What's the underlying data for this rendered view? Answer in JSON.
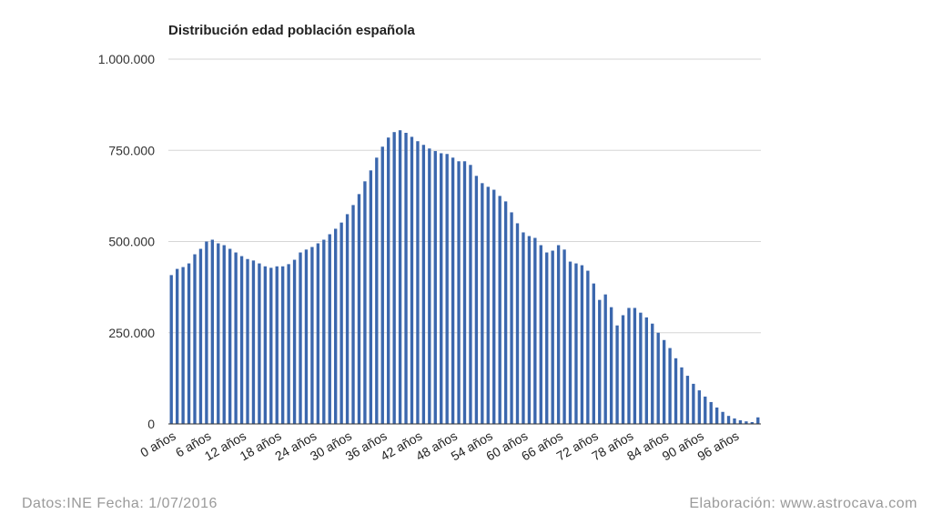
{
  "chart_data": {
    "type": "bar",
    "title": "Distribución edad población española",
    "xlabel": "",
    "ylabel": "",
    "ylim": [
      0,
      1000000
    ],
    "yticks": [
      {
        "value": 0,
        "label": "0"
      },
      {
        "value": 250000,
        "label": "250.000"
      },
      {
        "value": 500000,
        "label": "500.000"
      },
      {
        "value": 750000,
        "label": "750.000"
      },
      {
        "value": 1000000,
        "label": "1.000.000"
      }
    ],
    "categories": [
      "0 años",
      "1 años",
      "2 años",
      "3 años",
      "4 años",
      "5 años",
      "6 años",
      "7 años",
      "8 años",
      "9 años",
      "10 años",
      "11 años",
      "12 años",
      "13 años",
      "14 años",
      "15 años",
      "16 años",
      "17 años",
      "18 años",
      "19 años",
      "20 años",
      "21 años",
      "22 años",
      "23 años",
      "24 años",
      "25 años",
      "26 años",
      "27 años",
      "28 años",
      "29 años",
      "30 años",
      "31 años",
      "32 años",
      "33 años",
      "34 años",
      "35 años",
      "36 años",
      "37 años",
      "38 años",
      "39 años",
      "40 años",
      "41 años",
      "42 años",
      "43 años",
      "44 años",
      "45 años",
      "46 años",
      "47 años",
      "48 años",
      "49 años",
      "50 años",
      "51 años",
      "52 años",
      "53 años",
      "54 años",
      "55 años",
      "56 años",
      "57 años",
      "58 años",
      "59 años",
      "60 años",
      "61 años",
      "62 años",
      "63 años",
      "64 años",
      "65 años",
      "66 años",
      "67 años",
      "68 años",
      "69 años",
      "70 años",
      "71 años",
      "72 años",
      "73 años",
      "74 años",
      "75 años",
      "76 años",
      "77 años",
      "78 años",
      "79 años",
      "80 años",
      "81 años",
      "82 años",
      "83 años",
      "84 años",
      "85 años",
      "86 años",
      "87 años",
      "88 años",
      "89 años",
      "90 años",
      "91 años",
      "92 años",
      "93 años",
      "94 años",
      "95 años",
      "96 años",
      "97 años",
      "98 años",
      "99 años",
      "100 años"
    ],
    "tick_labels": [
      "0 años",
      "6 años",
      "12 años",
      "18 años",
      "24 años",
      "30 años",
      "36 años",
      "42 años",
      "48 años",
      "54 años",
      "60 años",
      "66 años",
      "72 años",
      "78 años",
      "84 años",
      "90 años",
      "96 años"
    ],
    "values": [
      408000,
      425000,
      430000,
      440000,
      465000,
      480000,
      500000,
      505000,
      495000,
      490000,
      480000,
      470000,
      460000,
      452000,
      448000,
      440000,
      432000,
      428000,
      432000,
      432000,
      438000,
      450000,
      470000,
      478000,
      485000,
      495000,
      505000,
      520000,
      535000,
      552000,
      575000,
      600000,
      630000,
      665000,
      695000,
      730000,
      760000,
      785000,
      800000,
      805000,
      798000,
      787000,
      775000,
      765000,
      755000,
      748000,
      742000,
      740000,
      730000,
      720000,
      720000,
      710000,
      680000,
      660000,
      650000,
      642000,
      625000,
      610000,
      580000,
      550000,
      525000,
      515000,
      510000,
      490000,
      470000,
      475000,
      490000,
      478000,
      445000,
      440000,
      435000,
      420000,
      385000,
      340000,
      355000,
      320000,
      270000,
      298000,
      318000,
      318000,
      305000,
      292000,
      275000,
      250000,
      230000,
      208000,
      180000,
      155000,
      132000,
      110000,
      92000,
      75000,
      60000,
      45000,
      33000,
      22000,
      15000,
      10000,
      7000,
      5000,
      18000
    ],
    "bar_color": "#3b67ad",
    "grid": true,
    "legend": "none"
  },
  "footer": {
    "source": "Datos:INE Fecha: 1/07/2016",
    "credit": "Elaboración: www.astrocava.com"
  }
}
